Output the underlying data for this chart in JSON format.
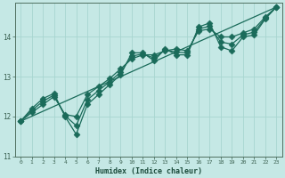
{
  "xlabel": "Humidex (Indice chaleur)",
  "ylabel": "",
  "bg_color": "#c5e8e5",
  "grid_color": "#a8d5d0",
  "line_color": "#1a6b5a",
  "xlim": [
    -0.5,
    23.5
  ],
  "ylim": [
    11.0,
    14.85
  ],
  "xticks": [
    0,
    1,
    2,
    3,
    4,
    5,
    6,
    7,
    8,
    9,
    10,
    11,
    12,
    13,
    14,
    15,
    16,
    17,
    18,
    19,
    20,
    21,
    22,
    23
  ],
  "yticks": [
    11,
    12,
    13,
    14
  ],
  "line1_x": [
    0,
    1,
    2,
    3,
    4,
    5,
    6,
    7,
    8,
    9,
    10,
    11,
    12,
    13,
    14,
    15,
    16,
    17,
    18,
    19,
    20,
    21,
    22,
    23
  ],
  "line1_y": [
    11.88,
    12.2,
    12.45,
    12.58,
    12.0,
    11.55,
    12.3,
    12.55,
    12.8,
    13.05,
    13.6,
    13.6,
    13.4,
    13.7,
    13.55,
    13.55,
    14.25,
    14.35,
    13.75,
    13.65,
    14.0,
    14.05,
    14.45,
    14.75
  ],
  "line2_x": [
    0,
    1,
    2,
    3,
    4,
    5,
    6,
    7,
    8,
    9,
    10,
    11,
    12,
    13,
    14,
    15,
    16,
    17,
    18,
    19,
    20,
    21,
    22,
    23
  ],
  "line2_y": [
    11.88,
    12.1,
    12.3,
    12.5,
    12.05,
    12.0,
    12.55,
    12.75,
    12.95,
    13.2,
    13.45,
    13.55,
    13.55,
    13.65,
    13.7,
    13.65,
    14.15,
    14.2,
    14.0,
    14.0,
    14.1,
    14.2,
    14.5,
    14.75
  ],
  "line3_x": [
    0,
    23
  ],
  "line3_y": [
    11.88,
    14.75
  ],
  "line4_x": [
    0,
    1,
    2,
    3,
    4,
    5,
    6,
    7,
    8,
    9,
    10,
    11,
    12,
    13,
    14,
    15,
    16,
    17,
    18,
    19,
    20,
    21,
    22,
    23
  ],
  "line4_y": [
    11.88,
    12.15,
    12.38,
    12.54,
    12.02,
    11.77,
    12.42,
    12.65,
    12.87,
    13.12,
    13.52,
    13.57,
    13.47,
    13.67,
    13.62,
    13.6,
    14.2,
    14.27,
    13.87,
    13.82,
    14.05,
    14.12,
    14.47,
    14.75
  ],
  "marker_size": 3.5,
  "linewidth": 0.9
}
